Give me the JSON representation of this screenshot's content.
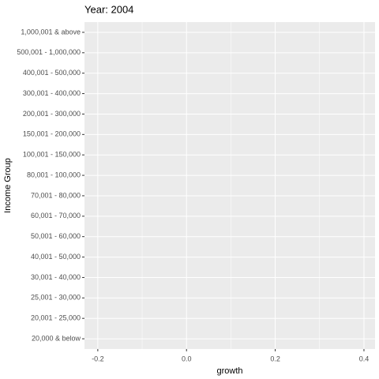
{
  "chart_data": {
    "type": "bar",
    "orientation": "horizontal",
    "title": "Year: 2004",
    "x_label": "growth",
    "y_label": "Income Group",
    "categories": [
      "20,000 & below",
      "20,001 - 25,000",
      "25,001 - 30,000",
      "30,001 - 40,000",
      "40,001 - 50,000",
      "50,001 - 60,000",
      "60,001 - 70,000",
      "70,001 - 80,000",
      "80,001 - 100,000",
      "100,001 - 150,000",
      "150,001 - 200,000",
      "200,001 - 300,000",
      "300,001 - 400,000",
      "400,001 - 500,000",
      "500,001 - 1,000,000",
      "1,000,001 & above"
    ],
    "xlim": [
      -0.23,
      0.425
    ],
    "xticks": [
      -0.2,
      {
        "value": 0,
        "label": "0.0"
      },
      0.2,
      0.4
    ],
    "grid": true,
    "panel_color": "#ebebeb"
  }
}
